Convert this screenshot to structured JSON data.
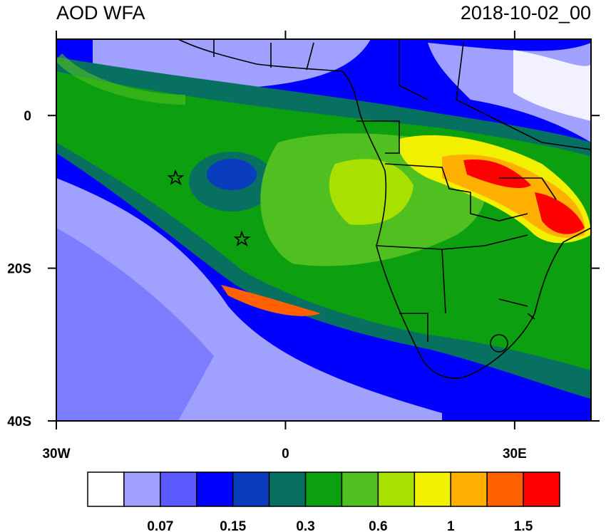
{
  "header": {
    "title": "AOD WFA",
    "timestamp": "2018-10-02_00"
  },
  "map": {
    "lon_range": [
      -30,
      40
    ],
    "lat_range": [
      -40,
      10
    ],
    "lat_ticks": [
      {
        "value": 0,
        "label": "0"
      },
      {
        "value": -20,
        "label": "20S"
      },
      {
        "value": -40,
        "label": "40S"
      }
    ],
    "lon_ticks": [
      {
        "value": -30,
        "label": "30W"
      },
      {
        "value": 0,
        "label": "0"
      },
      {
        "value": 30,
        "label": "30E"
      }
    ]
  },
  "colorbar": {
    "colors": [
      "#ffffff",
      "#a0a0ff",
      "#5a5aff",
      "#0000ff",
      "#0a3cbe",
      "#087060",
      "#0ca010",
      "#50c020",
      "#a8e000",
      "#f0f000",
      "#ffb000",
      "#ff6000",
      "#ff0000"
    ],
    "labels": [
      "0.07",
      "0.15",
      "0.3",
      "0.6",
      "1",
      "1.5"
    ]
  }
}
